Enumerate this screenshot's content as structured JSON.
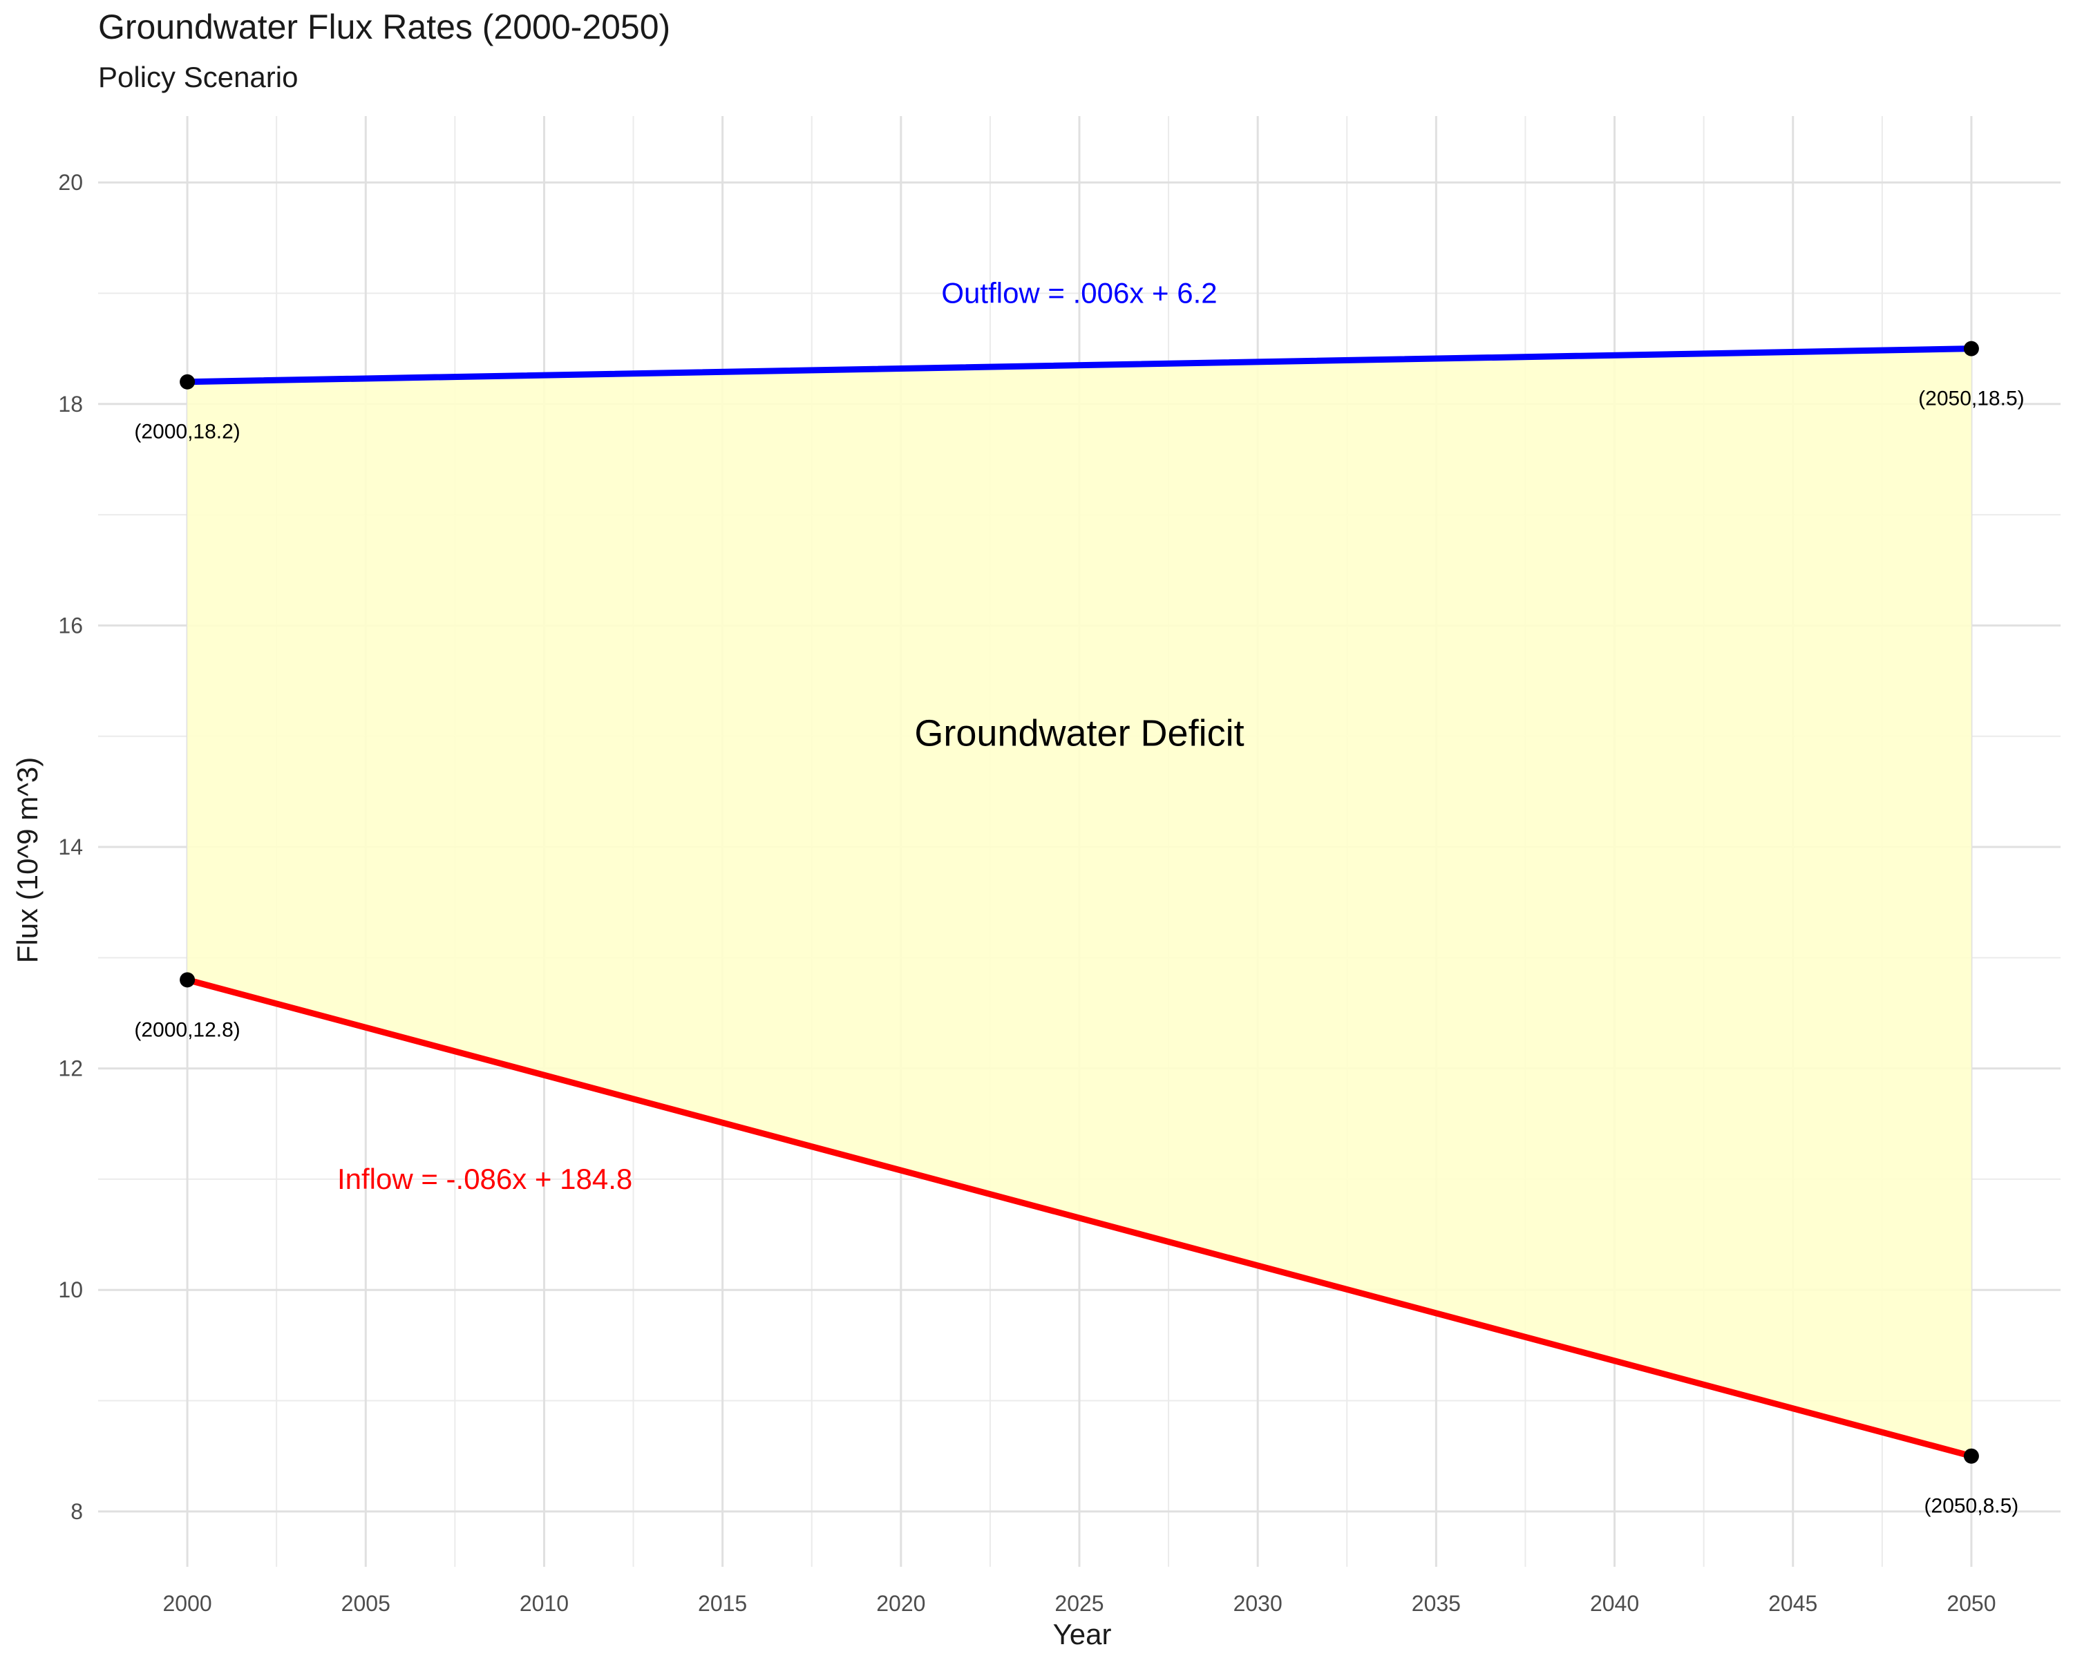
{
  "title": "Groundwater Flux Rates (2000-2050)",
  "subtitle": "Policy Scenario",
  "chart_data": {
    "type": "line",
    "title": "Groundwater Flux Rates (2000-2050)",
    "subtitle": "Policy Scenario",
    "xlabel": "Year",
    "ylabel": "Flux (10^9 m^3)",
    "xlim": [
      1997.5,
      2052.5
    ],
    "ylim": [
      7.5,
      20.6
    ],
    "x_ticks": [
      2000,
      2005,
      2010,
      2015,
      2020,
      2025,
      2030,
      2035,
      2040,
      2045,
      2050
    ],
    "y_ticks": [
      8,
      10,
      12,
      14,
      16,
      18,
      20
    ],
    "grid": true,
    "series": [
      {
        "name": "Outflow",
        "color": "#0000ff",
        "x": [
          2000,
          2050
        ],
        "y": [
          18.2,
          18.5
        ],
        "equation": "Outflow = .006x + 6.2"
      },
      {
        "name": "Inflow",
        "color": "#ff0000",
        "x": [
          2000,
          2050
        ],
        "y": [
          12.8,
          8.5
        ],
        "equation": "Inflow = -.086x + 184.8"
      }
    ],
    "shaded_region": {
      "label": "Groundwater Deficit",
      "color": "#ffffcc",
      "between": [
        "Outflow",
        "Inflow"
      ]
    },
    "point_labels": [
      {
        "x": 2000,
        "y": 18.2,
        "text": "(2000,18.2)"
      },
      {
        "x": 2050,
        "y": 18.5,
        "text": "(2050,18.5)"
      },
      {
        "x": 2000,
        "y": 12.8,
        "text": "(2000,12.8)"
      },
      {
        "x": 2050,
        "y": 8.5,
        "text": "(2050,8.5)"
      }
    ],
    "annotations": [
      {
        "text": "Outflow = .006x + 6.2",
        "x": 2025,
        "y": 19.0,
        "color": "#0000ff"
      },
      {
        "text": "Inflow = -.086x + 184.8",
        "x": 2009,
        "y": 11.0,
        "color": "#ff0000"
      },
      {
        "text": "Groundwater Deficit",
        "x": 2025,
        "y": 15.0,
        "color": "#000000"
      }
    ]
  }
}
